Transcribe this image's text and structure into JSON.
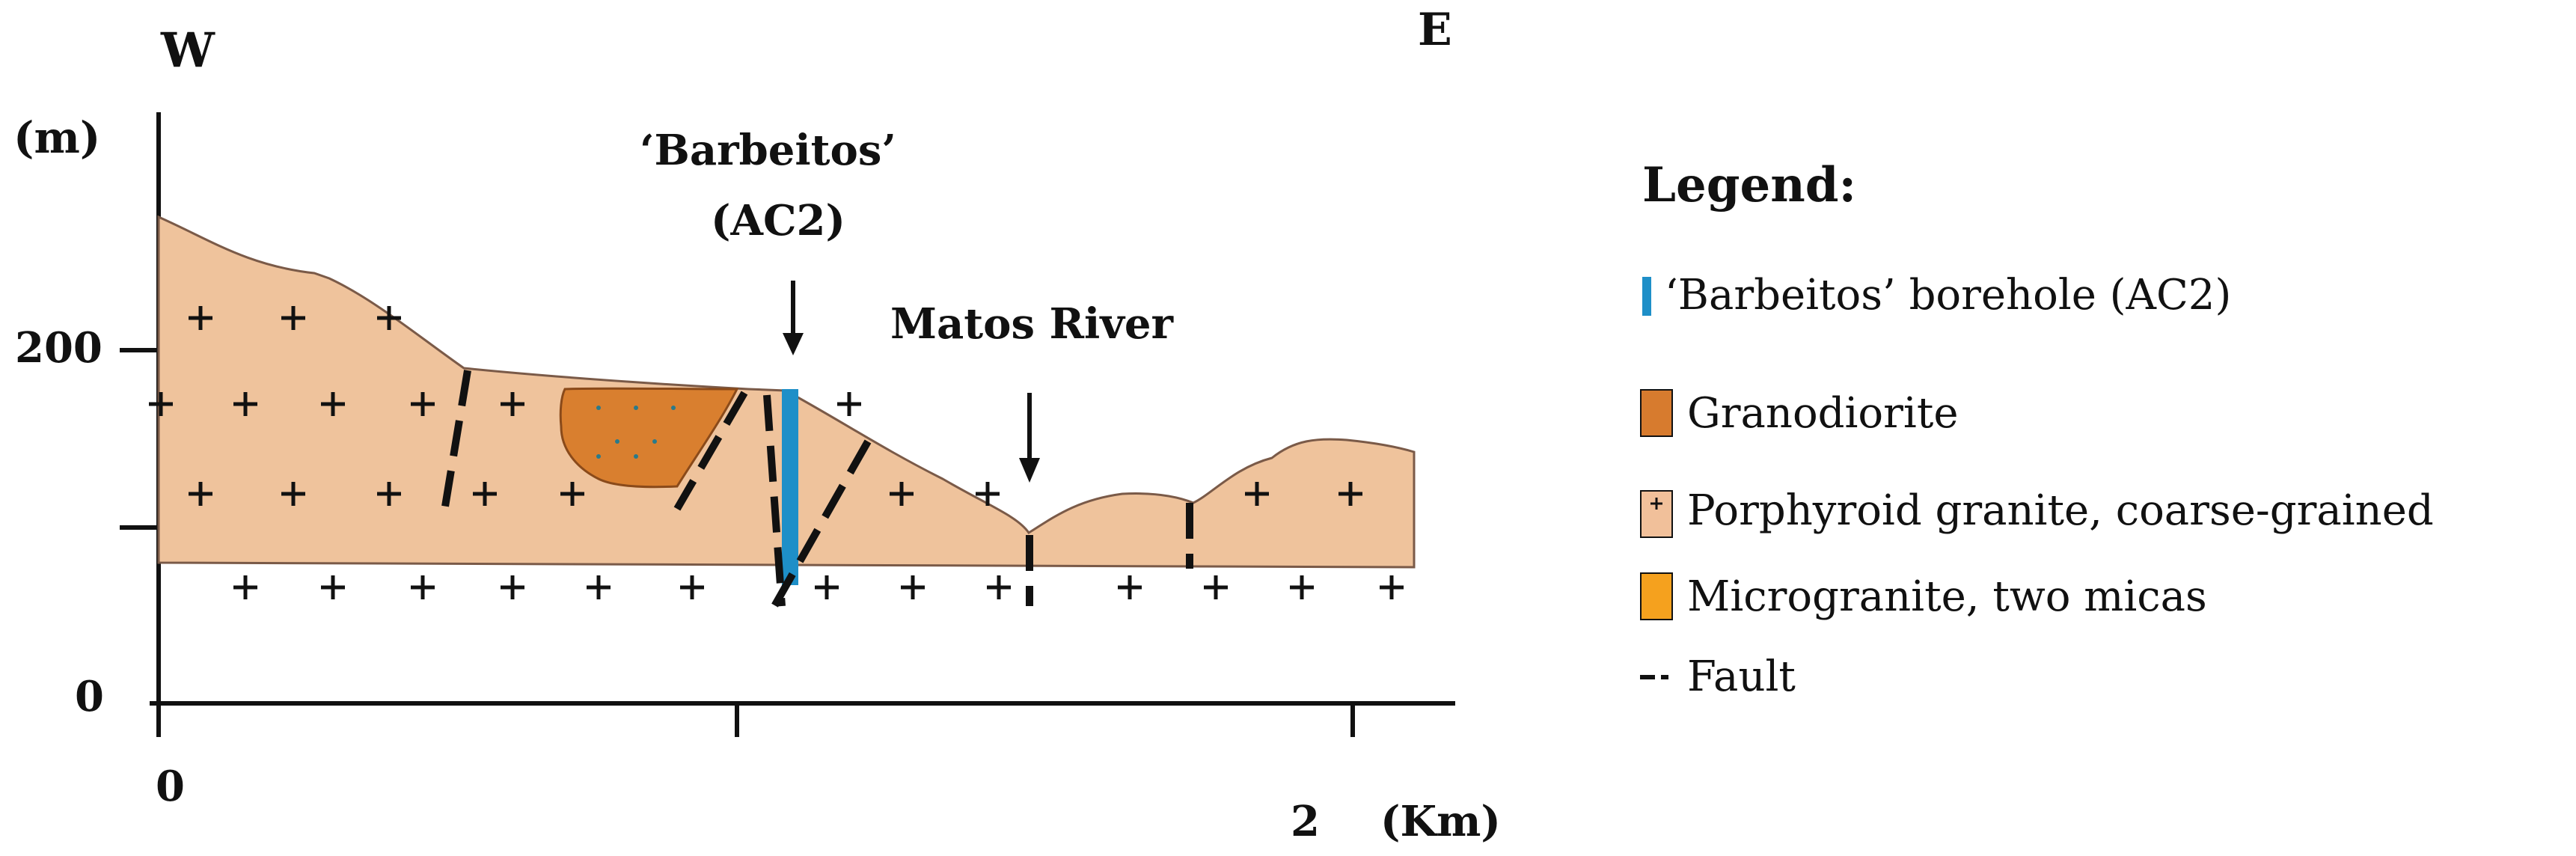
{
  "direction": {
    "west": "W",
    "east": "E"
  },
  "y_axis": {
    "unit": "(m)",
    "ticks": [
      "200",
      "0"
    ]
  },
  "x_axis": {
    "ticks": [
      "0",
      "2"
    ],
    "unit": "(Km)"
  },
  "annotations": {
    "borehole_name": "‘Barbeitos’",
    "borehole_code": "(AC2)",
    "river": "Matos River"
  },
  "legend": {
    "title": "Legend:",
    "items": [
      {
        "label": "‘Barbeitos’ borehole (AC2)",
        "color": "#1e8fc8"
      },
      {
        "label": "Granodiorite",
        "color": "#d77b2e"
      },
      {
        "label": "Porphyroid granite, coarse-grained",
        "color": "#f1c09a"
      },
      {
        "label": "Microgranite, two micas",
        "color": "#f5a11e"
      },
      {
        "label": "Fault",
        "color": "#111111"
      }
    ]
  },
  "colors": {
    "granite": "#efc39c",
    "granodiorite": "#d97f2f",
    "borehole": "#1e8fc8",
    "fault": "#111111"
  }
}
